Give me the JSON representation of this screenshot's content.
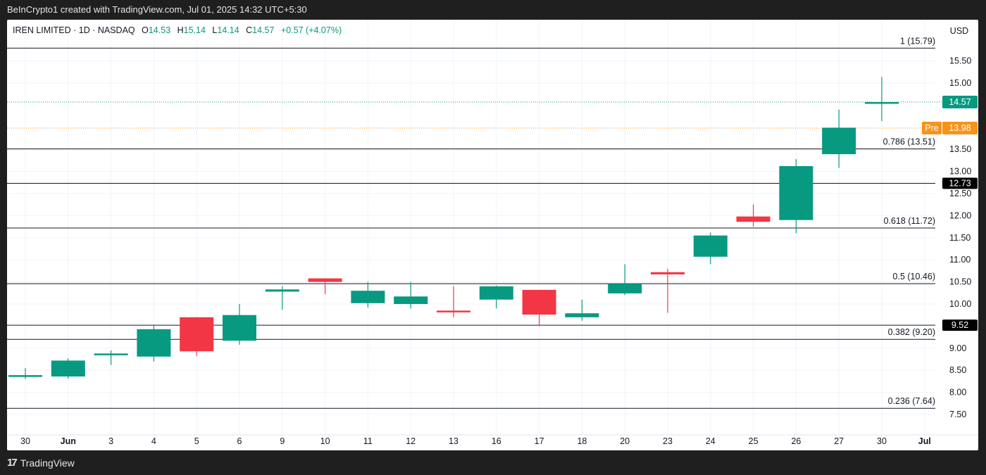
{
  "header": {
    "attribution": "BeInCrypto1 created with TradingView.com, Jul 01, 2025 14:32 UTC+5:30"
  },
  "legend": {
    "symbol": "IREN LIMITED · 1D · NASDAQ",
    "open_label": "O",
    "open": "14.53",
    "high_label": "H",
    "high": "15.14",
    "low_label": "L",
    "low": "14.14",
    "close_label": "C",
    "close": "14.57",
    "change": "+0.57 (+4.07%)"
  },
  "axis": {
    "currency": "USD"
  },
  "footer": {
    "brand": "TradingView",
    "logo_glyph": "17"
  },
  "colors": {
    "up": "#089981",
    "down": "#f23645",
    "pre": "#f7931a",
    "fib_line": "#131722",
    "grid": "#f0f3fa"
  },
  "chart_data": {
    "type": "candlestick",
    "title": "IREN LIMITED · 1D · NASDAQ",
    "xlabel": "",
    "ylabel": "USD",
    "ylim": [
      7.2,
      16.1
    ],
    "grid": true,
    "y_ticks": [
      "15.50",
      "15.00",
      "13.50",
      "13.00",
      "12.50",
      "12.00",
      "11.50",
      "11.00",
      "10.50",
      "10.00",
      "9.00",
      "8.50",
      "8.00",
      "7.50"
    ],
    "x_ticks": [
      "30",
      "Jun",
      "3",
      "4",
      "5",
      "6",
      "9",
      "10",
      "11",
      "12",
      "13",
      "16",
      "17",
      "18",
      "20",
      "23",
      "24",
      "25",
      "26",
      "27",
      "30",
      "Jul"
    ],
    "candles": [
      {
        "date": "30",
        "o": 8.38,
        "h": 8.55,
        "l": 8.3,
        "c": 8.39
      },
      {
        "date": "Jun",
        "o": 8.36,
        "h": 8.77,
        "l": 8.31,
        "c": 8.72
      },
      {
        "date": "3",
        "o": 8.85,
        "h": 8.95,
        "l": 8.62,
        "c": 8.88
      },
      {
        "date": "4",
        "o": 8.81,
        "h": 9.52,
        "l": 8.7,
        "c": 9.43
      },
      {
        "date": "5",
        "o": 9.7,
        "h": 9.7,
        "l": 8.82,
        "c": 8.93
      },
      {
        "date": "6",
        "o": 9.17,
        "h": 10.0,
        "l": 9.08,
        "c": 9.75
      },
      {
        "date": "9",
        "o": 10.28,
        "h": 10.4,
        "l": 9.87,
        "c": 10.33
      },
      {
        "date": "10",
        "o": 10.58,
        "h": 10.58,
        "l": 10.22,
        "c": 10.5
      },
      {
        "date": "11",
        "o": 10.02,
        "h": 10.5,
        "l": 9.92,
        "c": 10.3
      },
      {
        "date": "12",
        "o": 10.0,
        "h": 10.5,
        "l": 9.9,
        "c": 10.17
      },
      {
        "date": "13",
        "o": 9.85,
        "h": 10.4,
        "l": 9.7,
        "c": 9.83
      },
      {
        "date": "16",
        "o": 10.1,
        "h": 10.42,
        "l": 9.9,
        "c": 10.4
      },
      {
        "date": "17",
        "o": 10.32,
        "h": 10.32,
        "l": 9.5,
        "c": 9.76
      },
      {
        "date": "18",
        "o": 9.7,
        "h": 10.1,
        "l": 9.62,
        "c": 9.79
      },
      {
        "date": "20",
        "o": 10.24,
        "h": 10.9,
        "l": 10.2,
        "c": 10.46
      },
      {
        "date": "23",
        "o": 10.72,
        "h": 10.8,
        "l": 9.8,
        "c": 10.67
      },
      {
        "date": "24",
        "o": 11.07,
        "h": 11.62,
        "l": 10.9,
        "c": 11.55
      },
      {
        "date": "25",
        "o": 11.98,
        "h": 12.25,
        "l": 11.75,
        "c": 11.86
      },
      {
        "date": "26",
        "o": 11.9,
        "h": 13.28,
        "l": 11.6,
        "c": 13.12
      },
      {
        "date": "27",
        "o": 13.39,
        "h": 14.4,
        "l": 13.08,
        "c": 13.99
      },
      {
        "date": "30",
        "o": 14.53,
        "h": 15.14,
        "l": 14.14,
        "c": 14.57
      }
    ],
    "fib_levels": [
      {
        "label": "1 (15.79)",
        "value": 15.79
      },
      {
        "label": "0.786 (13.51)",
        "value": 13.51
      },
      {
        "label": "0.618 (11.72)",
        "value": 11.72
      },
      {
        "label": "0.5 (10.46)",
        "value": 10.46
      },
      {
        "label": "0.382 (9.20)",
        "value": 9.2
      },
      {
        "label": "0.236 (7.64)",
        "value": 7.64
      }
    ],
    "horizontal_lines": [
      {
        "label": "12.73",
        "value": 12.73
      },
      {
        "label": "9.52",
        "value": 9.52
      }
    ],
    "last_price": {
      "label": "14.57",
      "value": 14.57
    },
    "pre_market": {
      "tag": "Pre",
      "label": "13.98",
      "value": 13.98
    }
  }
}
